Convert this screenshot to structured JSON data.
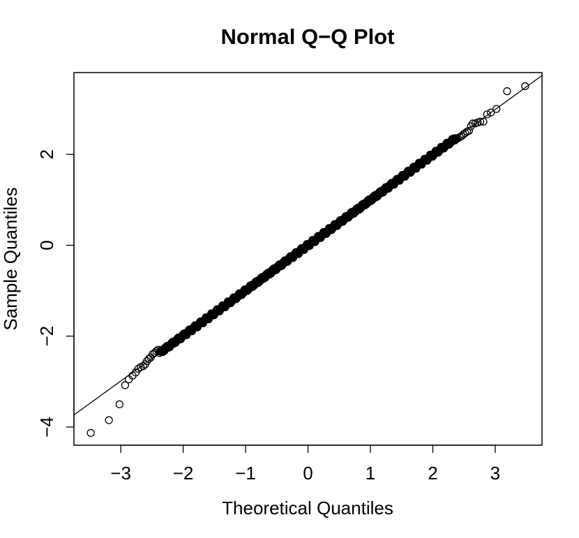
{
  "chart_data": {
    "type": "scatter",
    "title": "Normal Q−Q Plot",
    "xlabel": "Theoretical Quantiles",
    "ylabel": "Sample Quantiles",
    "xlim": [
      -3.75,
      3.75
    ],
    "ylim": [
      -4.4,
      3.8
    ],
    "grid": false,
    "legend": "none",
    "x_ticks": [
      -3,
      -2,
      -1,
      0,
      1,
      2,
      3
    ],
    "x_tick_labels": [
      "−3",
      "−2",
      "−1",
      "0",
      "1",
      "2",
      "3"
    ],
    "y_ticks": [
      -4,
      -2,
      0,
      2
    ],
    "y_tick_labels": [
      "−4",
      "−2",
      "0",
      "2"
    ],
    "reference_line": {
      "slope": 0.996,
      "intercept": 0.0
    },
    "points_x": [
      -3.48,
      -3.19,
      -3.02,
      -2.93,
      -2.87,
      -2.81,
      -2.76,
      -2.72,
      -2.68,
      -2.64,
      -2.61,
      -2.58,
      -2.55,
      -2.52,
      -2.49,
      -2.46,
      -2.43,
      -2.4,
      2.4,
      2.43,
      2.46,
      2.49,
      2.52,
      2.55,
      2.58,
      2.61,
      2.64,
      2.68,
      2.72,
      2.76,
      2.81,
      2.87,
      2.93,
      3.02,
      3.19,
      3.48
    ],
    "points_y": [
      -4.13,
      -3.85,
      -3.5,
      -3.08,
      -2.95,
      -2.87,
      -2.8,
      -2.72,
      -2.68,
      -2.66,
      -2.62,
      -2.55,
      -2.5,
      -2.47,
      -2.4,
      -2.37,
      -2.33,
      -2.3,
      2.35,
      2.38,
      2.4,
      2.44,
      2.47,
      2.5,
      2.52,
      2.62,
      2.68,
      2.68,
      2.7,
      2.72,
      2.72,
      2.88,
      2.92,
      3.0,
      3.39,
      3.5
    ],
    "dense_points": {
      "count": 900,
      "x_range": [
        -2.38,
        2.38
      ],
      "slope": 0.996,
      "intercept": 0.0
    }
  }
}
